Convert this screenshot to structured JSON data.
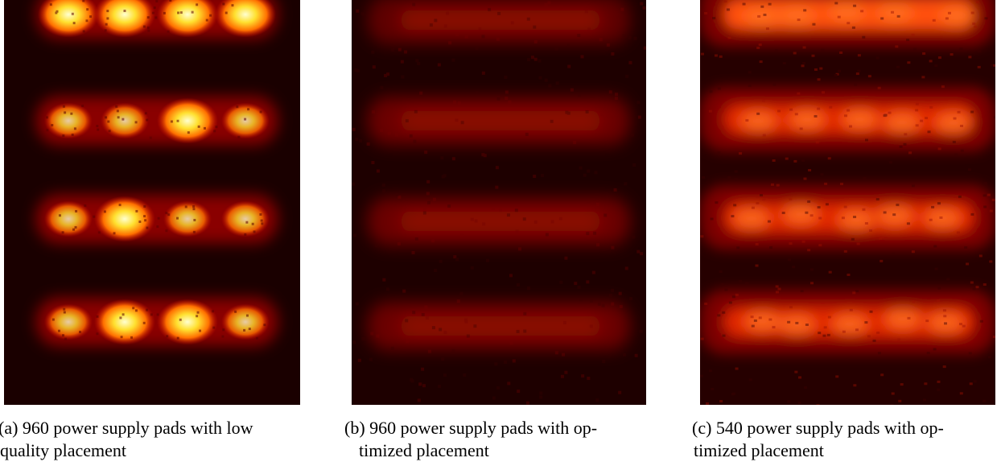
{
  "figure": {
    "panels": [
      {
        "id": "a",
        "caption_line1": "(a) 960 power supply pads with low",
        "caption_line2": "quality placement",
        "colormap": [
          "#200000",
          "#8a0000",
          "#e02000",
          "#ff8000",
          "#ffe040",
          "#ffffe0"
        ],
        "peak_intensity": 1.0
      },
      {
        "id": "b",
        "caption_line1": "(b) 960 power supply pads with op-",
        "caption_line2": "timized placement",
        "colormap": [
          "#200000",
          "#8a0000",
          "#e02000",
          "#ff8000",
          "#ffe040",
          "#ffffe0"
        ],
        "peak_intensity": 0.35
      },
      {
        "id": "c",
        "caption_line1": "(c) 540 power supply pads with op-",
        "caption_line2": "timized placement",
        "colormap": [
          "#200000",
          "#8a0000",
          "#e02000",
          "#ff8000",
          "#ffe040",
          "#ffffe0"
        ],
        "peak_intensity": 0.65
      }
    ]
  }
}
